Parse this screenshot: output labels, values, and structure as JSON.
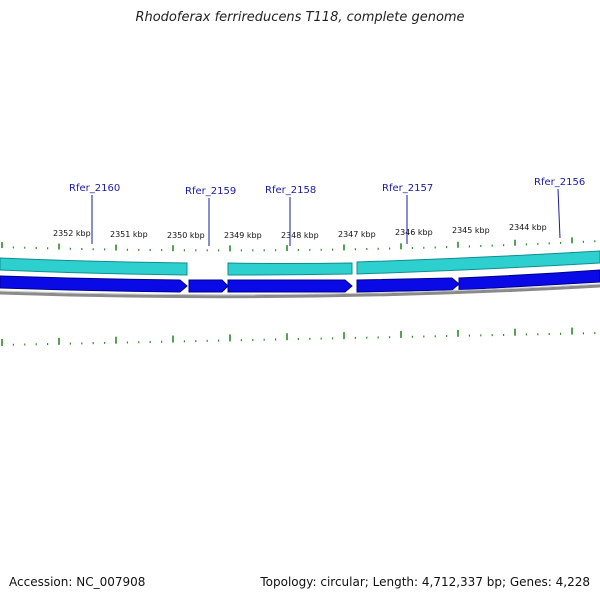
{
  "title": "Rhodoferax ferrireducens T118, complete genome",
  "accession": "Accession: NC_007908",
  "summary": "Topology: circular; Length: 4,712,337 bp; Genes: 4,228",
  "colors": {
    "cds_teal": "#2ecfcf",
    "cds_teal_edge": "#0c8f8f",
    "gene_blue": "#0a0ae6",
    "gene_blue_edge": "#00008a",
    "backbone": "#8a8a8a",
    "tick": "#2e8b2e",
    "label_line": "#1a1aa6"
  },
  "kbp_labels": [
    "2352 kbp",
    "2351 kbp",
    "2350 kbp",
    "2349 kbp",
    "2348 kbp",
    "2347 kbp",
    "2346 kbp",
    "2345 kbp",
    "2344 kbp"
  ],
  "gene_labels": [
    "Rfer_2160",
    "Rfer_2159",
    "Rfer_2158",
    "Rfer_2157",
    "Rfer_2156"
  ]
}
